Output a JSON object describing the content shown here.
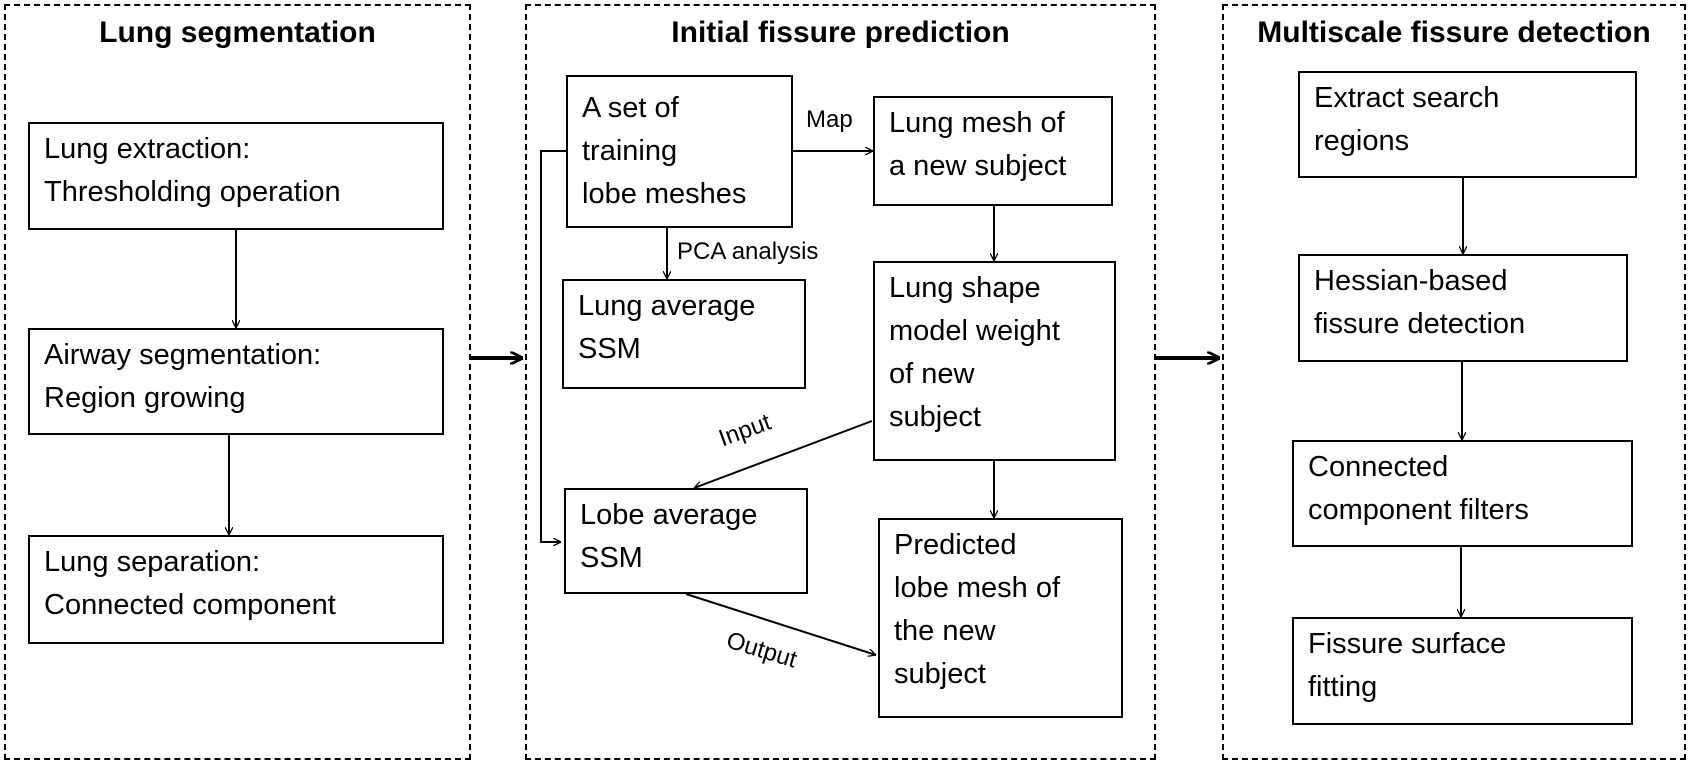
{
  "panels": {
    "lung_segmentation": {
      "title": "Lung segmentation",
      "steps": [
        "Lung extraction:\nThresholding operation",
        "Airway segmentation:\nRegion growing",
        "Lung separation:\nConnected component"
      ]
    },
    "initial_fissure_prediction": {
      "title": "Initial fissure prediction",
      "training": "A set of\ntraining\nlobe meshes",
      "lung_mesh": "Lung mesh of\na new subject",
      "lung_avg_ssm": "Lung average\nSSM",
      "shape_weight": "Lung shape\nmodel weight\nof new\nsubject",
      "lobe_avg_ssm": "Lobe average\nSSM",
      "predicted": "Predicted\nlobe mesh of\nthe new\nsubject",
      "edge_labels": {
        "map": "Map",
        "pca": "PCA analysis",
        "input": "Input",
        "output": "Output"
      }
    },
    "multiscale_fissure_detection": {
      "title": "Multiscale fissure detection",
      "steps": [
        "Extract search\nregions",
        "Hessian-based\nfissure detection",
        "Connected\ncomponent filters",
        "Fissure surface\nfitting"
      ]
    }
  }
}
